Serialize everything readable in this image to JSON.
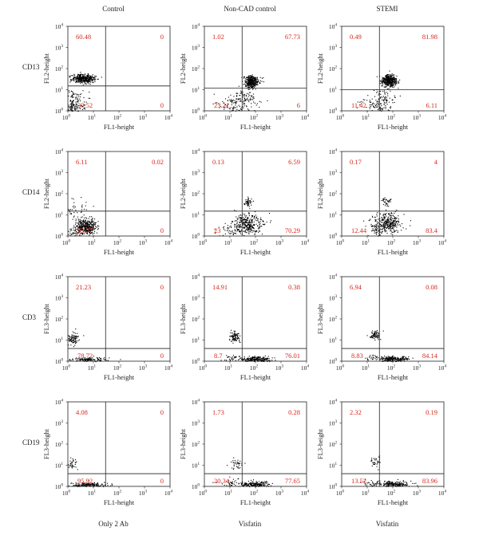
{
  "column_titles": [
    "Control",
    "Non-CAD control",
    "STEMI"
  ],
  "column_footers": [
    "Only 2 Ab",
    "Visfatin",
    "Visfatin"
  ],
  "colors": {
    "quadrant_text": "#d8281e",
    "dots": "#000000",
    "frame": "#222222"
  },
  "chart_data": [
    {
      "type": "scatter",
      "title": "Control",
      "row": "CD13",
      "xlabel": "FL1-height",
      "ylabel": "FL2-height",
      "xlim": [
        1,
        10000
      ],
      "ylim": [
        1,
        10000
      ],
      "log_scale": true,
      "ticks": [
        "10",
        "0",
        "10",
        "1",
        "10",
        "2",
        "10",
        "3",
        "10",
        "4"
      ],
      "gate": {
        "x": 30,
        "y": 15
      },
      "quadrants": {
        "upper_left": "60.48",
        "upper_right": "0",
        "lower_left": "39.52",
        "lower_right": "0"
      },
      "clusters": [
        {
          "x": 4,
          "y": 35,
          "n": 420,
          "sx": 0.22,
          "sy": 0.1
        },
        {
          "x": 1.6,
          "y": 2.4,
          "n": 150,
          "sx": 0.25,
          "sy": 0.3
        },
        {
          "x": 1.3,
          "y": 1.2,
          "n": 40,
          "sx": 0.15,
          "sy": 0.1
        }
      ]
    },
    {
      "type": "scatter",
      "title": "Non-CAD control",
      "row": "CD13",
      "xlabel": "FL1-height",
      "ylabel": "FL2-height",
      "xlim": [
        1,
        10000
      ],
      "ylim": [
        1,
        10000
      ],
      "log_scale": true,
      "ticks": [
        "10",
        "0",
        "10",
        "1",
        "10",
        "2",
        "10",
        "3",
        "10",
        "4"
      ],
      "gate": {
        "x": 30,
        "y": 12
      },
      "quadrants": {
        "upper_left": "1.02",
        "upper_right": "67.73",
        "lower_left": "23.21",
        "lower_right": "6"
      },
      "clusters": [
        {
          "x": 70,
          "y": 25,
          "n": 380,
          "sx": 0.14,
          "sy": 0.14
        },
        {
          "x": 20,
          "y": 2,
          "n": 160,
          "sx": 0.4,
          "sy": 0.3
        },
        {
          "x": 40,
          "y": 5,
          "n": 40,
          "sx": 0.2,
          "sy": 0.2
        }
      ]
    },
    {
      "type": "scatter",
      "title": "STEMI",
      "row": "CD13",
      "xlabel": "FL1-height",
      "ylabel": "FL2-height",
      "xlim": [
        1,
        10000
      ],
      "ylim": [
        1,
        10000
      ],
      "log_scale": true,
      "ticks": [
        "10",
        "0",
        "10",
        "1",
        "10",
        "2",
        "10",
        "3",
        "10",
        "4"
      ],
      "gate": {
        "x": 30,
        "y": 10
      },
      "quadrants": {
        "upper_left": "0.49",
        "upper_right": "81.98",
        "lower_left": "11.42",
        "lower_right": "6.11"
      },
      "clusters": [
        {
          "x": 70,
          "y": 28,
          "n": 400,
          "sx": 0.14,
          "sy": 0.14
        },
        {
          "x": 25,
          "y": 2,
          "n": 120,
          "sx": 0.35,
          "sy": 0.3
        },
        {
          "x": 50,
          "y": 5,
          "n": 40,
          "sx": 0.2,
          "sy": 0.2
        }
      ]
    },
    {
      "type": "scatter",
      "title": "",
      "row": "CD14",
      "xlabel": "FL1-height",
      "ylabel": "FL2-height",
      "xlim": [
        1,
        10000
      ],
      "ylim": [
        1,
        10000
      ],
      "log_scale": true,
      "ticks": [
        "10",
        "0",
        "10",
        "1",
        "10",
        "2",
        "10",
        "3",
        "10",
        "4"
      ],
      "gate": {
        "x": 30,
        "y": 15
      },
      "quadrants": {
        "upper_left": "6.11",
        "upper_right": "0.02",
        "lower_left": "93.77",
        "lower_right": "0"
      },
      "clusters": [
        {
          "x": 5,
          "y": 3,
          "n": 380,
          "sx": 0.2,
          "sy": 0.2
        },
        {
          "x": 2,
          "y": 20,
          "n": 40,
          "sx": 0.25,
          "sy": 0.2
        },
        {
          "x": 1.6,
          "y": 1.5,
          "n": 40,
          "sx": 0.2,
          "sy": 0.15
        }
      ]
    },
    {
      "type": "scatter",
      "title": "",
      "row": "CD14",
      "xlabel": "FL1-height",
      "ylabel": "FL2-height",
      "xlim": [
        1,
        10000
      ],
      "ylim": [
        1,
        10000
      ],
      "log_scale": true,
      "ticks": [
        "10",
        "0",
        "10",
        "1",
        "10",
        "2",
        "10",
        "3",
        "10",
        "4"
      ],
      "gate": {
        "x": 30,
        "y": 15
      },
      "quadrants": {
        "upper_left": "0.13",
        "upper_right": "6.59",
        "lower_left": "23",
        "lower_right": "70.29"
      },
      "clusters": [
        {
          "x": 50,
          "y": 4,
          "n": 320,
          "sx": 0.3,
          "sy": 0.25
        },
        {
          "x": 50,
          "y": 45,
          "n": 50,
          "sx": 0.08,
          "sy": 0.1
        },
        {
          "x": 15,
          "y": 2,
          "n": 60,
          "sx": 0.3,
          "sy": 0.2
        }
      ]
    },
    {
      "type": "scatter",
      "title": "",
      "row": "CD14",
      "xlabel": "FL1-height",
      "ylabel": "FL2-height",
      "xlim": [
        1,
        10000
      ],
      "ylim": [
        1,
        10000
      ],
      "log_scale": true,
      "ticks": [
        "10",
        "0",
        "10",
        "1",
        "10",
        "2",
        "10",
        "3",
        "10",
        "4"
      ],
      "gate": {
        "x": 30,
        "y": 15
      },
      "quadrants": {
        "upper_left": "0.17",
        "upper_right": "4",
        "lower_left": "12.44",
        "lower_right": "83.4"
      },
      "clusters": [
        {
          "x": 55,
          "y": 4,
          "n": 320,
          "sx": 0.28,
          "sy": 0.25
        },
        {
          "x": 55,
          "y": 45,
          "n": 40,
          "sx": 0.08,
          "sy": 0.1
        },
        {
          "x": 25,
          "y": 2,
          "n": 40,
          "sx": 0.2,
          "sy": 0.15
        }
      ]
    },
    {
      "type": "scatter",
      "title": "",
      "row": "CD3",
      "xlabel": "FL1-height",
      "ylabel": "FL3-height",
      "xlim": [
        1,
        10000
      ],
      "ylim": [
        1,
        10000
      ],
      "log_scale": true,
      "ticks": [
        "10",
        "0",
        "10",
        "1",
        "10",
        "2",
        "10",
        "3",
        "10",
        "4"
      ],
      "gate": {
        "x": 30,
        "y": 4
      },
      "quadrants": {
        "upper_left": "21.23",
        "upper_right": "0",
        "lower_left": "78.72",
        "lower_right": "0"
      },
      "clusters": [
        {
          "x": 1.5,
          "y": 12,
          "n": 90,
          "sx": 0.12,
          "sy": 0.15
        },
        {
          "x": 6,
          "y": 1.2,
          "n": 140,
          "sx": 0.35,
          "sy": 0.06
        }
      ]
    },
    {
      "type": "scatter",
      "title": "",
      "row": "CD3",
      "xlabel": "FL1-height",
      "ylabel": "FL3-height",
      "xlim": [
        1,
        10000
      ],
      "ylim": [
        1,
        10000
      ],
      "log_scale": true,
      "ticks": [
        "10",
        "0",
        "10",
        "1",
        "10",
        "2",
        "10",
        "3",
        "10",
        "4"
      ],
      "gate": {
        "x": 30,
        "y": 4
      },
      "quadrants": {
        "upper_left": "14.91",
        "upper_right": "0.38",
        "lower_left": "8.7",
        "lower_right": "76.01"
      },
      "clusters": [
        {
          "x": 15,
          "y": 15,
          "n": 90,
          "sx": 0.1,
          "sy": 0.12
        },
        {
          "x": 100,
          "y": 1.3,
          "n": 220,
          "sx": 0.3,
          "sy": 0.07
        },
        {
          "x": 12,
          "y": 1.6,
          "n": 30,
          "sx": 0.2,
          "sy": 0.1
        }
      ]
    },
    {
      "type": "scatter",
      "title": "",
      "row": "CD3",
      "xlabel": "FL1-height",
      "ylabel": "FL3-height",
      "xlim": [
        1,
        10000
      ],
      "ylim": [
        1,
        10000
      ],
      "log_scale": true,
      "ticks": [
        "10",
        "0",
        "10",
        "1",
        "10",
        "2",
        "10",
        "3",
        "10",
        "4"
      ],
      "gate": {
        "x": 30,
        "y": 4
      },
      "quadrants": {
        "upper_left": "6.94",
        "upper_right": "0.08",
        "lower_left": "8.83",
        "lower_right": "84.14"
      },
      "clusters": [
        {
          "x": 20,
          "y": 18,
          "n": 70,
          "sx": 0.1,
          "sy": 0.12
        },
        {
          "x": 100,
          "y": 1.3,
          "n": 220,
          "sx": 0.3,
          "sy": 0.07
        },
        {
          "x": 15,
          "y": 1.6,
          "n": 25,
          "sx": 0.2,
          "sy": 0.1
        }
      ]
    },
    {
      "type": "scatter",
      "title": "",
      "row": "CD19",
      "xlabel": "FL1-height",
      "ylabel": "FL3-height",
      "xlim": [
        1,
        10000
      ],
      "ylim": [
        1,
        10000
      ],
      "log_scale": true,
      "ticks": [
        "10",
        "0",
        "10",
        "1",
        "10",
        "2",
        "10",
        "3",
        "10",
        "4"
      ],
      "gate": {
        "x": 30,
        "y": 4
      },
      "quadrants": {
        "upper_left": "4.08",
        "upper_right": "0",
        "lower_left": "95.92",
        "lower_right": "0"
      },
      "clusters": [
        {
          "x": 1.4,
          "y": 12,
          "n": 35,
          "sx": 0.1,
          "sy": 0.15
        },
        {
          "x": 6,
          "y": 1.2,
          "n": 180,
          "sx": 0.35,
          "sy": 0.06
        }
      ]
    },
    {
      "type": "scatter",
      "title": "",
      "row": "CD19",
      "xlabel": "FL1-height",
      "ylabel": "FL3-height",
      "xlim": [
        1,
        10000
      ],
      "ylim": [
        1,
        10000
      ],
      "log_scale": true,
      "ticks": [
        "10",
        "0",
        "10",
        "1",
        "10",
        "2",
        "10",
        "3",
        "10",
        "4"
      ],
      "gate": {
        "x": 30,
        "y": 4
      },
      "quadrants": {
        "upper_left": "1.73",
        "upper_right": "0.28",
        "lower_left": "20.34",
        "lower_right": "77.65"
      },
      "clusters": [
        {
          "x": 18,
          "y": 12,
          "n": 35,
          "sx": 0.12,
          "sy": 0.12
        },
        {
          "x": 100,
          "y": 1.3,
          "n": 200,
          "sx": 0.3,
          "sy": 0.07
        },
        {
          "x": 12,
          "y": 1.5,
          "n": 40,
          "sx": 0.25,
          "sy": 0.1
        }
      ]
    },
    {
      "type": "scatter",
      "title": "",
      "row": "CD19",
      "xlabel": "FL1-height",
      "ylabel": "FL3-height",
      "xlim": [
        1,
        10000
      ],
      "ylim": [
        1,
        10000
      ],
      "log_scale": true,
      "ticks": [
        "10",
        "0",
        "10",
        "1",
        "10",
        "2",
        "10",
        "3",
        "10",
        "4"
      ],
      "gate": {
        "x": 30,
        "y": 4
      },
      "quadrants": {
        "upper_left": "2.32",
        "upper_right": "0.19",
        "lower_left": "13.52",
        "lower_right": "83.96"
      },
      "clusters": [
        {
          "x": 20,
          "y": 15,
          "n": 35,
          "sx": 0.1,
          "sy": 0.12
        },
        {
          "x": 100,
          "y": 1.3,
          "n": 210,
          "sx": 0.3,
          "sy": 0.07
        },
        {
          "x": 15,
          "y": 1.5,
          "n": 30,
          "sx": 0.2,
          "sy": 0.1
        }
      ]
    }
  ]
}
